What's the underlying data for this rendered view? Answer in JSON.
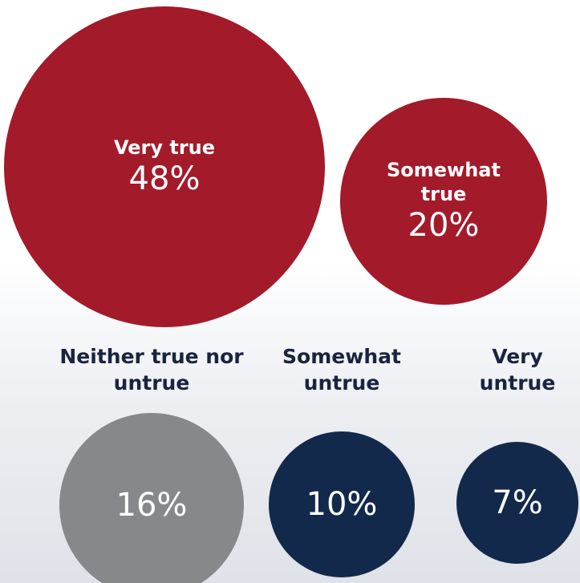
{
  "chart_data": {
    "type": "bubble",
    "categories": [
      "Very true",
      "Somewhat true",
      "Neither true nor untrue",
      "Somewhat untrue",
      "Very untrue"
    ],
    "values": [
      48,
      20,
      16,
      10,
      7
    ],
    "value_labels": [
      "48%",
      "20%",
      "16%",
      "10%",
      "7%"
    ],
    "colors": [
      "#a31a2a",
      "#a31a2a",
      "#87888c",
      "#13294b",
      "#13294b"
    ]
  }
}
